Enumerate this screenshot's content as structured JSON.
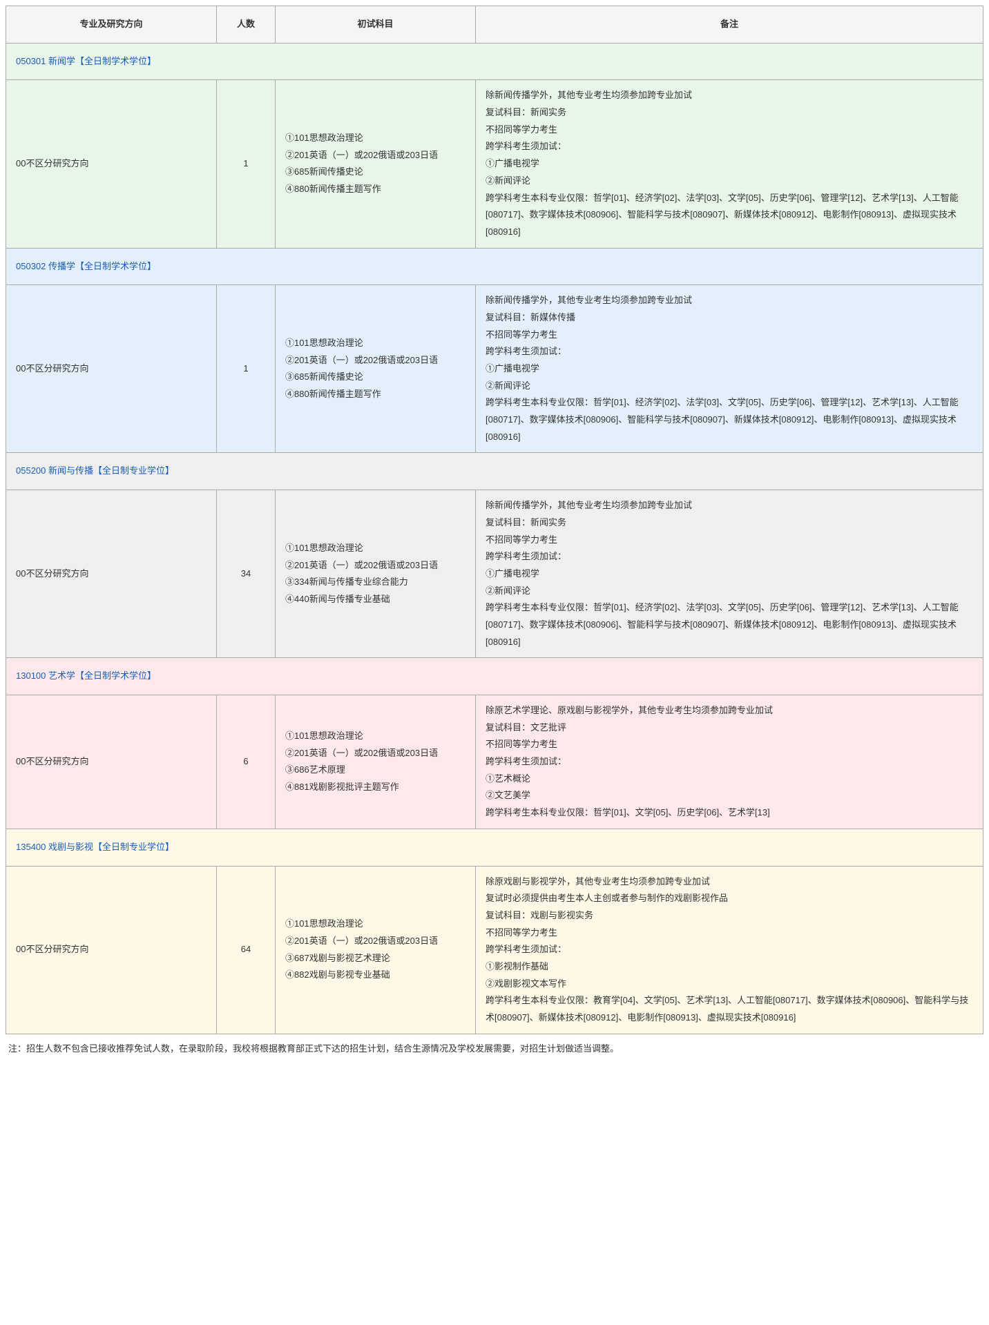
{
  "headers": {
    "major": "专业及研究方向",
    "num": "人数",
    "exam": "初试科目",
    "note": "备注"
  },
  "sections": [
    {
      "title": "050301 新闻学【全日制学术学位】",
      "bgClass": "sec-green",
      "rows": [
        {
          "direction": "00不区分研究方向",
          "num": "1",
          "exams": [
            "①101思想政治理论",
            "②201英语（一）或202俄语或203日语",
            "③685新闻传播史论",
            "④880新闻传播主题写作"
          ],
          "notes": [
            "除新闻传播学外，其他专业考生均须参加跨专业加试",
            "复试科目：新闻实务",
            "不招同等学力考生",
            "跨学科考生须加试：",
            "①广播电视学",
            "②新闻评论",
            "跨学科考生本科专业仅限：哲学[01]、经济学[02]、法学[03]、文学[05]、历史学[06]、管理学[12]、艺术学[13]、人工智能[080717]、数字媒体技术[080906]、智能科学与技术[080907]、新媒体技术[080912]、电影制作[080913]、虚拟现实技术[080916]"
          ]
        }
      ]
    },
    {
      "title": "050302 传播学【全日制学术学位】",
      "bgClass": "sec-blue",
      "rows": [
        {
          "direction": "00不区分研究方向",
          "num": "1",
          "exams": [
            "①101思想政治理论",
            "②201英语（一）或202俄语或203日语",
            "③685新闻传播史论",
            "④880新闻传播主题写作"
          ],
          "notes": [
            "除新闻传播学外，其他专业考生均须参加跨专业加试",
            "复试科目：新媒体传播",
            "不招同等学力考生",
            "跨学科考生须加试：",
            "①广播电视学",
            "②新闻评论",
            "跨学科考生本科专业仅限：哲学[01]、经济学[02]、法学[03]、文学[05]、历史学[06]、管理学[12]、艺术学[13]、人工智能[080717]、数字媒体技术[080906]、智能科学与技术[080907]、新媒体技术[080912]、电影制作[080913]、虚拟现实技术[080916]"
          ]
        }
      ]
    },
    {
      "title": "055200 新闻与传播【全日制专业学位】",
      "bgClass": "sec-gray",
      "rows": [
        {
          "direction": "00不区分研究方向",
          "num": "34",
          "exams": [
            "①101思想政治理论",
            "②201英语（一）或202俄语或203日语",
            "③334新闻与传播专业综合能力",
            "④440新闻与传播专业基础"
          ],
          "notes": [
            "除新闻传播学外，其他专业考生均须参加跨专业加试",
            "复试科目：新闻实务",
            "不招同等学力考生",
            "跨学科考生须加试：",
            "①广播电视学",
            "②新闻评论",
            "跨学科考生本科专业仅限：哲学[01]、经济学[02]、法学[03]、文学[05]、历史学[06]、管理学[12]、艺术学[13]、人工智能[080717]、数字媒体技术[080906]、智能科学与技术[080907]、新媒体技术[080912]、电影制作[080913]、虚拟现实技术[080916]"
          ]
        }
      ]
    },
    {
      "title": "130100 艺术学【全日制学术学位】",
      "bgClass": "sec-pink",
      "rows": [
        {
          "direction": "00不区分研究方向",
          "num": "6",
          "exams": [
            "①101思想政治理论",
            "②201英语（一）或202俄语或203日语",
            "③686艺术原理",
            "④881戏剧影视批评主题写作"
          ],
          "notes": [
            "除原艺术学理论、原戏剧与影视学外，其他专业考生均须参加跨专业加试",
            "复试科目：文艺批评",
            "不招同等学力考生",
            "跨学科考生须加试：",
            "①艺术概论",
            "②文艺美学",
            "跨学科考生本科专业仅限：哲学[01]、文学[05]、历史学[06]、艺术学[13]"
          ]
        }
      ]
    },
    {
      "title": "135400 戏剧与影视【全日制专业学位】",
      "bgClass": "sec-yellow",
      "rows": [
        {
          "direction": "00不区分研究方向",
          "num": "64",
          "exams": [
            "①101思想政治理论",
            "②201英语（一）或202俄语或203日语",
            "③687戏剧与影视艺术理论",
            "④882戏剧与影视专业基础"
          ],
          "notes": [
            "除原戏剧与影视学外，其他专业考生均须参加跨专业加试",
            "复试时必须提供由考生本人主创或者参与制作的戏剧影视作品",
            "复试科目：戏剧与影视实务",
            "不招同等学力考生",
            "跨学科考生须加试：",
            "①影视制作基础",
            "②戏剧影视文本写作",
            "跨学科考生本科专业仅限：教育学[04]、文学[05]、艺术学[13]、人工智能[080717]、数字媒体技术[080906]、智能科学与技术[080907]、新媒体技术[080912]、电影制作[080913]、虚拟现实技术[080916]"
          ]
        }
      ]
    }
  ],
  "footnote": "注：招生人数不包含已接收推荐免试人数，在录取阶段，我校将根据教育部正式下达的招生计划，结合生源情况及学校发展需要，对招生计划做适当调整。"
}
